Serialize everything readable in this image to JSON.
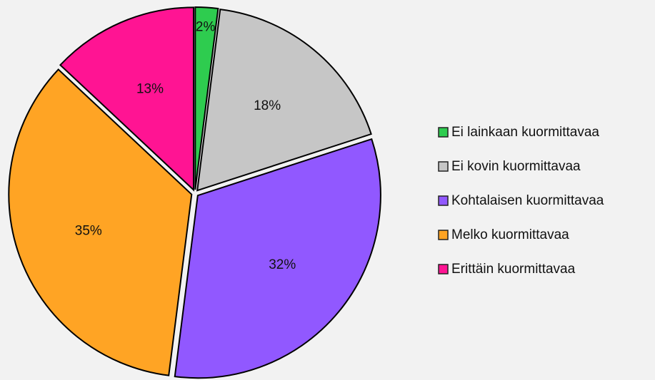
{
  "chart_data": {
    "type": "pie",
    "categories": [
      "Ei lainkaan kuormittavaa",
      "Ei kovin kuormittavaa",
      "Kohtalaisen kuormittavaa",
      "Melko kuormittavaa",
      "Erittäin kuormittavaa"
    ],
    "values": [
      2,
      18,
      32,
      35,
      13
    ],
    "value_labels": [
      "2%",
      "18%",
      "32%",
      "35%",
      "13%"
    ],
    "colors": [
      "#2ecc4f",
      "#c6c6c6",
      "#9158ff",
      "#ffa424",
      "#ff1493"
    ],
    "legend": "right"
  }
}
